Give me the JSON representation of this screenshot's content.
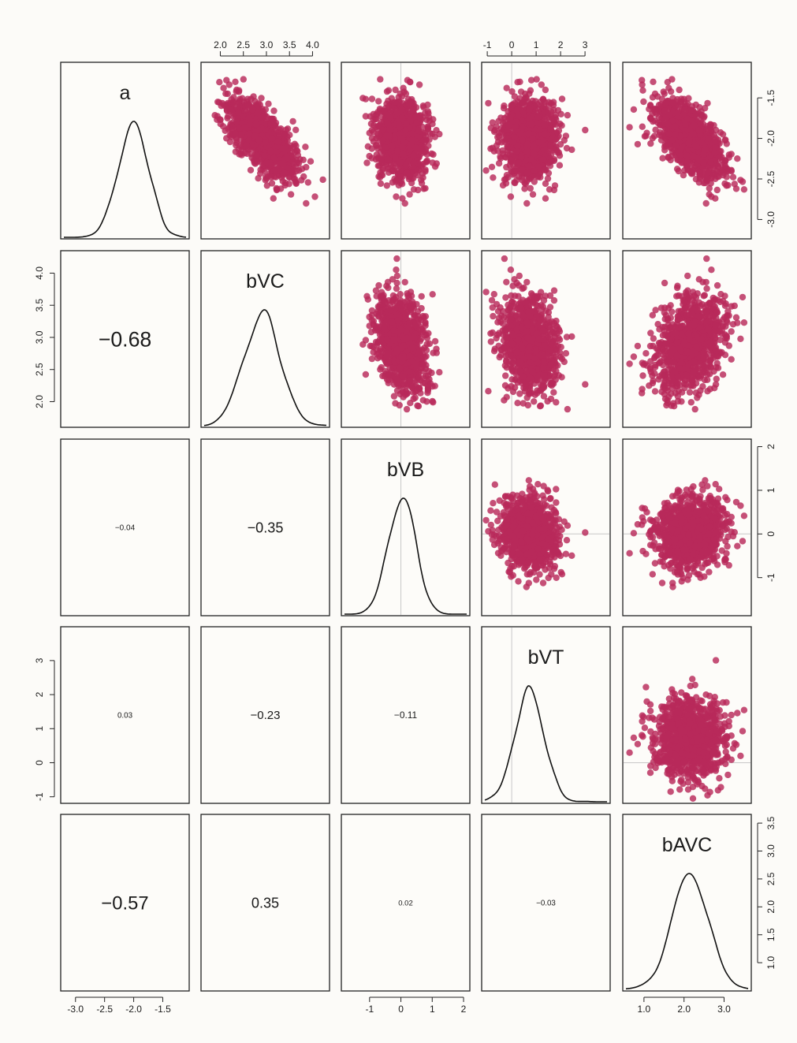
{
  "chart_data": {
    "type": "scatter",
    "title": "",
    "variables": [
      "a",
      "bVC",
      "bVB",
      "bVT",
      "bAVC"
    ],
    "ranges": {
      "a": [
        -3.2,
        -1.1
      ],
      "bVC": [
        1.65,
        4.3
      ],
      "bVB": [
        -1.8,
        2.1
      ],
      "bVT": [
        -1.1,
        3.9
      ],
      "bAVC": [
        0.55,
        3.6
      ]
    },
    "ticks": {
      "a": [
        {
          "v": -3.0,
          "label": "-3.0"
        },
        {
          "v": -2.5,
          "label": "-2.5"
        },
        {
          "v": -2.0,
          "label": "-2.0"
        },
        {
          "v": -1.5,
          "label": "-1.5"
        }
      ],
      "bVC": [
        {
          "v": 2.0,
          "label": "2.0"
        },
        {
          "v": 2.5,
          "label": "2.5"
        },
        {
          "v": 3.0,
          "label": "3.0"
        },
        {
          "v": 3.5,
          "label": "3.5"
        },
        {
          "v": 4.0,
          "label": "4.0"
        }
      ],
      "bVB": [
        {
          "v": -1,
          "label": "-1"
        },
        {
          "v": 0,
          "label": "0"
        },
        {
          "v": 1,
          "label": "1"
        },
        {
          "v": 2,
          "label": "2"
        }
      ],
      "bVT": [
        {
          "v": -1,
          "label": "-1"
        },
        {
          "v": 0,
          "label": "0"
        },
        {
          "v": 1,
          "label": "1"
        },
        {
          "v": 2,
          "label": "2"
        },
        {
          "v": 3,
          "label": "3"
        }
      ],
      "bAVC": [
        {
          "v": 1.0,
          "label": "1.0"
        },
        {
          "v": 2.0,
          "label": "2.0"
        },
        {
          "v": 3.0,
          "label": "3.0"
        }
      ]
    },
    "ticks_right": {
      "a": [
        {
          "v": -1.5,
          "label": "-1.5"
        },
        {
          "v": -2.0,
          "label": "-2.0"
        },
        {
          "v": -2.5,
          "label": "-2.5"
        },
        {
          "v": -3.0,
          "label": "-3.0"
        }
      ],
      "bAVC": [
        {
          "v": 1.0,
          "label": "1.0"
        },
        {
          "v": 1.5,
          "label": "1.5"
        },
        {
          "v": 2.0,
          "label": "2.0"
        },
        {
          "v": 2.5,
          "label": "2.5"
        },
        {
          "v": 3.0,
          "label": "3.0"
        },
        {
          "v": 3.5,
          "label": "3.5"
        }
      ]
    },
    "means": {
      "a": -2.0,
      "bVC": 2.9,
      "bVB": 0.05,
      "bVT": 0.7,
      "bAVC": 2.15
    },
    "sds": {
      "a": 0.25,
      "bVC": 0.38,
      "bVB": 0.45,
      "bVT": 0.55,
      "bAVC": 0.42
    },
    "correlations": [
      {
        "row": "bVC",
        "col": "a",
        "r": -0.68,
        "label": "−0.68"
      },
      {
        "row": "bVB",
        "col": "a",
        "r": -0.04,
        "label": "−0.04"
      },
      {
        "row": "bVB",
        "col": "bVC",
        "r": -0.35,
        "label": "−0.35"
      },
      {
        "row": "bVT",
        "col": "a",
        "r": 0.03,
        "label": "0.03"
      },
      {
        "row": "bVT",
        "col": "bVC",
        "r": -0.23,
        "label": "−0.23"
      },
      {
        "row": "bVT",
        "col": "bVB",
        "r": -0.11,
        "label": "−0.11"
      },
      {
        "row": "bAVC",
        "col": "a",
        "r": -0.57,
        "label": "−0.57"
      },
      {
        "row": "bAVC",
        "col": "bVC",
        "r": 0.35,
        "label": "0.35"
      },
      {
        "row": "bAVC",
        "col": "bVB",
        "r": 0.02,
        "label": "0.02"
      },
      {
        "row": "bAVC",
        "col": "bVT",
        "r": -0.03,
        "label": "−0.03"
      }
    ],
    "reference_lines": {
      "bVB": 0,
      "bVT": 0
    },
    "n_samples": 1000,
    "colors": {
      "points": "#b8295a",
      "density": "#111111",
      "reference": "#c8c8c8",
      "frame": "#222222"
    }
  }
}
